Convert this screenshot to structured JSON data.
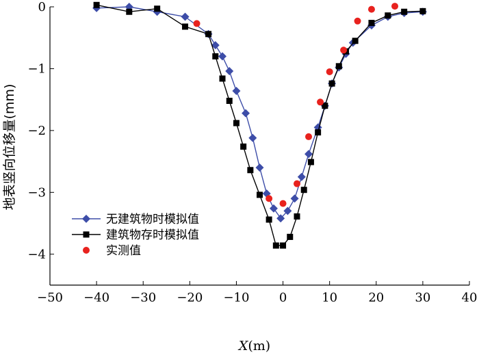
{
  "chart_data": {
    "type": "line",
    "xlabel_main": "X",
    "xlabel_unit": "(m)",
    "ylabel": "地表竖向位移量(mm)",
    "xlim": [
      -50,
      40
    ],
    "ylim": [
      -4.5,
      0
    ],
    "xticks": [
      "−50",
      "−40",
      "−30",
      "−20",
      "−10",
      "0",
      "10",
      "20",
      "30",
      "40"
    ],
    "xtick_values": [
      -50,
      -40,
      -30,
      -20,
      -10,
      0,
      10,
      20,
      30,
      40
    ],
    "yticks": [
      "0",
      "−1",
      "−2",
      "−3",
      "−4"
    ],
    "ytick_values": [
      0,
      -1,
      -2,
      -3,
      -4
    ],
    "legend_position": "bottom-left",
    "colors": {
      "blue": "#3d4da8",
      "black": "#000000",
      "red": "#e8221e"
    },
    "series": [
      {
        "name": "无建筑物时模拟值",
        "marker": "diamond",
        "color": "#3d4da8",
        "line": true,
        "x": [
          -40,
          -33,
          -27,
          -21,
          -16,
          -14.5,
          -13,
          -11.5,
          -10,
          -8,
          -6.5,
          -5,
          -3.5,
          -2,
          -0.5,
          1,
          2.5,
          4,
          5.5,
          7.5,
          9,
          10.5,
          12,
          13.5,
          15,
          19,
          22.5,
          26,
          30
        ],
        "y": [
          -0.02,
          0,
          -0.08,
          -0.16,
          -0.44,
          -0.62,
          -0.8,
          -1.04,
          -1.36,
          -1.72,
          -2.12,
          -2.6,
          -3.02,
          -3.26,
          -3.42,
          -3.3,
          -3.1,
          -2.75,
          -2.38,
          -1.95,
          -1.6,
          -1.24,
          -0.98,
          -0.76,
          -0.58,
          -0.3,
          -0.16,
          -0.1,
          -0.08
        ]
      },
      {
        "name": "建筑物存时模拟值",
        "marker": "square",
        "color": "#000000",
        "line": true,
        "x": [
          -40,
          -33,
          -27,
          -21,
          -16,
          -14.5,
          -13,
          -11.5,
          -10,
          -8.5,
          -7,
          -5,
          -3,
          -1.5,
          0,
          1.5,
          3,
          4.5,
          6,
          7.5,
          9,
          10.5,
          12,
          13.5,
          15.5,
          19,
          22.5,
          26,
          30
        ],
        "y": [
          0.03,
          -0.08,
          -0.03,
          -0.32,
          -0.44,
          -0.8,
          -1.16,
          -1.52,
          -1.88,
          -2.26,
          -2.64,
          -3.04,
          -3.44,
          -3.86,
          -3.86,
          -3.72,
          -3.39,
          -2.96,
          -2.51,
          -2.03,
          -1.6,
          -1.24,
          -0.96,
          -0.72,
          -0.55,
          -0.26,
          -0.14,
          -0.08,
          -0.07
        ]
      },
      {
        "name": "实测值",
        "marker": "circle",
        "color": "#e8221e",
        "line": false,
        "x": [
          -18.5,
          -3,
          0,
          3,
          5.5,
          8,
          10,
          13,
          16,
          19,
          24
        ],
        "y": [
          -0.27,
          -3.1,
          -3.18,
          -2.86,
          -2.1,
          -1.54,
          -1.05,
          -0.7,
          -0.23,
          -0.04,
          0.01
        ]
      }
    ]
  }
}
